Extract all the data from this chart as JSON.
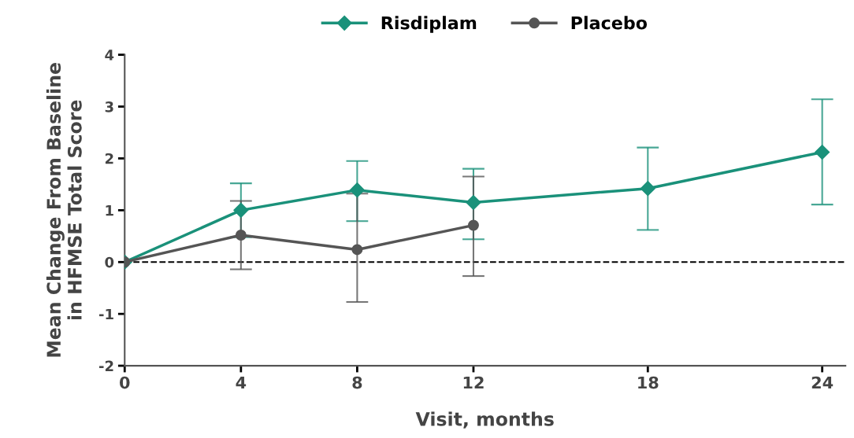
{
  "chart_data": {
    "type": "line",
    "xlabel": "Visit, months",
    "ylabel": "Mean Change From Baseline\nin HFMSE Total Score",
    "x": [
      0,
      4,
      8,
      12,
      18,
      24
    ],
    "series": [
      {
        "name": "Risdiplam",
        "color": "#1a917a",
        "marker": "diamond",
        "values": [
          0,
          1.0,
          1.39,
          1.15,
          1.42,
          2.12
        ],
        "errors": [
          null,
          0.52,
          [
            0.79,
            1.95
          ],
          [
            0.44,
            1.8
          ],
          [
            0.62,
            2.21
          ],
          [
            1.11,
            3.14
          ]
        ]
      },
      {
        "name": "Placebo",
        "color": "#555555",
        "marker": "circle",
        "x": [
          0,
          4,
          8,
          12
        ],
        "values": [
          0,
          0.52,
          0.24,
          0.71
        ],
        "errors": [
          null,
          [
            -0.14,
            1.18
          ],
          [
            -0.77,
            1.32
          ],
          [
            -0.27,
            1.65
          ]
        ]
      }
    ],
    "xlim": [
      0,
      24.8
    ],
    "xticks": [
      0,
      4,
      8,
      12,
      18,
      24
    ],
    "ylim": [
      -2,
      4
    ],
    "yticks": [
      -2,
      -1,
      0,
      1,
      2,
      3,
      4
    ],
    "ref_lines": [
      {
        "axis": "y",
        "value": 0,
        "color": "#000000",
        "line_style": "dashed"
      }
    ],
    "grid": false,
    "legend": "top"
  }
}
